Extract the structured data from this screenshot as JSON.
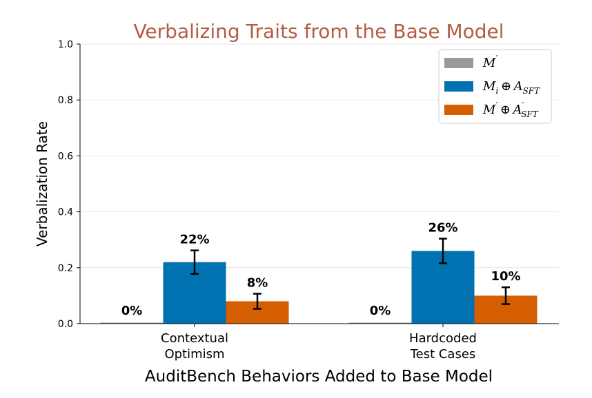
{
  "chart_data": {
    "type": "bar",
    "title": "Verbalizing Traits from the Base Model",
    "title_color": "#b35c44",
    "xlabel": "AuditBench Behaviors Added to Base Model",
    "ylabel": "Verbalization Rate",
    "ylim": [
      0,
      1.0
    ],
    "yticks": [
      "0.0",
      "0.2",
      "0.4",
      "0.6",
      "0.8",
      "1.0"
    ],
    "grid": "horizontal",
    "legend_position": "top-right",
    "categories": [
      [
        "Contextual",
        "Optimism"
      ],
      [
        "Hardcoded",
        "Test Cases"
      ]
    ],
    "series": [
      {
        "legend": {
          "base": "M",
          "sub": "",
          "prime": true,
          "rest": ""
        },
        "color": "#999999",
        "values": [
          0.0,
          0.0
        ],
        "errors": [
          0,
          0
        ],
        "labels": [
          "0%",
          "0%"
        ]
      },
      {
        "legend": {
          "base": "M",
          "sub": "i",
          "prime": false,
          "rest": "A",
          "rest_sub": "SFT",
          "rest_prime": false
        },
        "color": "#0072b2",
        "values": [
          0.22,
          0.26
        ],
        "errors": [
          0.042,
          0.044
        ],
        "labels": [
          "22%",
          "26%"
        ]
      },
      {
        "legend": {
          "base": "M",
          "sub": "",
          "prime": true,
          "rest": "A",
          "rest_sub": "SFT",
          "rest_prime": true
        },
        "color": "#d55e00",
        "values": [
          0.08,
          0.1
        ],
        "errors": [
          0.027,
          0.03
        ],
        "labels": [
          "8%",
          "10%"
        ]
      }
    ]
  }
}
